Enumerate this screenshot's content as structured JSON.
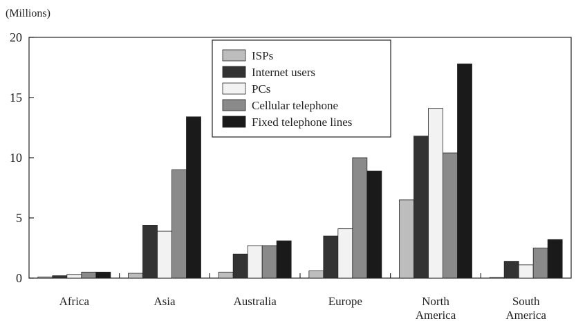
{
  "chart_data": {
    "type": "bar",
    "unit_label": "(Millions)",
    "title": "",
    "xlabel": "",
    "ylabel": "",
    "ylim": [
      0,
      20
    ],
    "yticks": [
      "0",
      "5",
      "10",
      "15",
      "20"
    ],
    "grid": false,
    "legend_position": "top-center",
    "categories": [
      "Africa",
      "Asia",
      "Australia",
      "Europe",
      "North America",
      "South America"
    ],
    "category_lines": [
      [
        "Africa"
      ],
      [
        "Asia"
      ],
      [
        "Australia"
      ],
      [
        "Europe"
      ],
      [
        "North",
        "America"
      ],
      [
        "South",
        "America"
      ]
    ],
    "series": [
      {
        "name": "ISPs",
        "color": "#bdbdbd",
        "values": [
          0.1,
          0.4,
          0.5,
          0.6,
          6.5,
          0.05
        ]
      },
      {
        "name": "Internet users",
        "color": "#333333",
        "values": [
          0.2,
          4.4,
          2.0,
          3.5,
          11.8,
          1.4
        ]
      },
      {
        "name": "PCs",
        "color": "#f2f2f2",
        "values": [
          0.3,
          3.9,
          2.7,
          4.1,
          14.1,
          1.1
        ]
      },
      {
        "name": "Cellular telephone",
        "color": "#8a8a8a",
        "values": [
          0.5,
          9.0,
          2.7,
          10.0,
          10.4,
          2.5
        ]
      },
      {
        "name": "Fixed telephone lines",
        "color": "#1a1a1a",
        "values": [
          0.5,
          13.4,
          3.1,
          8.9,
          17.8,
          3.2
        ]
      }
    ]
  }
}
